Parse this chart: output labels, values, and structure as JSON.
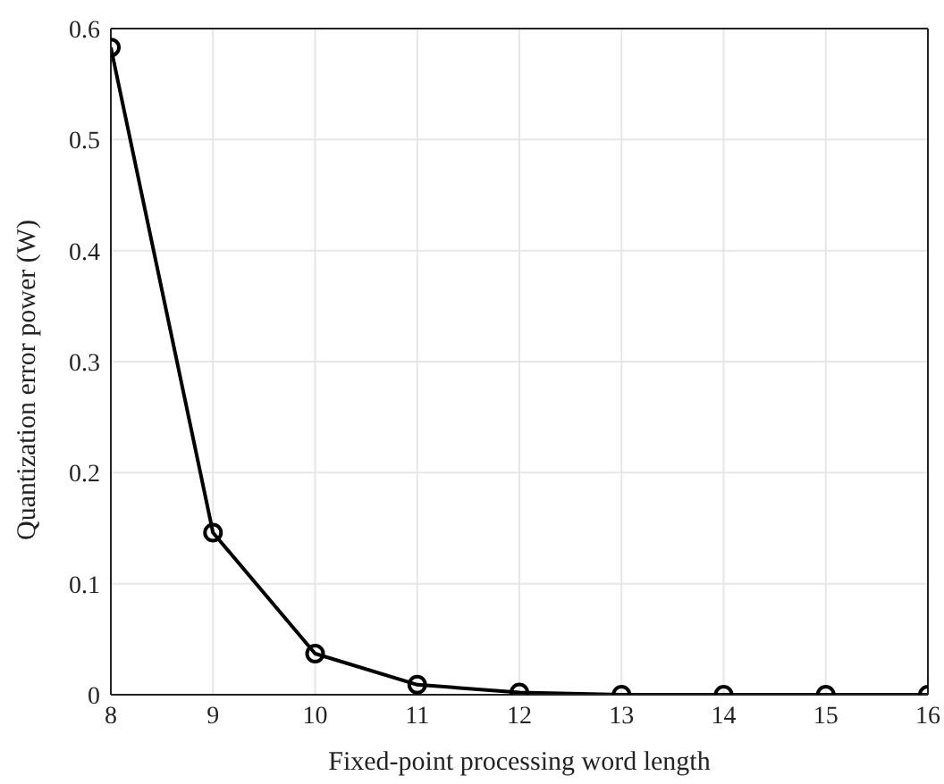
{
  "chart_data": {
    "type": "line",
    "xlabel": "Fixed-point processing word length",
    "ylabel": "Quantization error power (W)",
    "x": [
      8,
      9,
      10,
      11,
      12,
      13,
      14,
      15,
      16
    ],
    "series": [
      {
        "color": "#000000",
        "values": [
          0.583,
          0.146,
          0.037,
          0.009,
          0.002,
          0.0,
          0.0,
          0.0,
          0.0
        ]
      }
    ],
    "xlim": [
      8,
      16
    ],
    "xticks": [
      8,
      9,
      10,
      11,
      12,
      13,
      14,
      15,
      16
    ],
    "ylim": [
      0,
      0.6
    ],
    "yticks": [
      0,
      0.1,
      0.2,
      0.3,
      0.4,
      0.5,
      0.6
    ],
    "grid": true,
    "marker": "circle",
    "line_style": "solid",
    "legend": false
  }
}
